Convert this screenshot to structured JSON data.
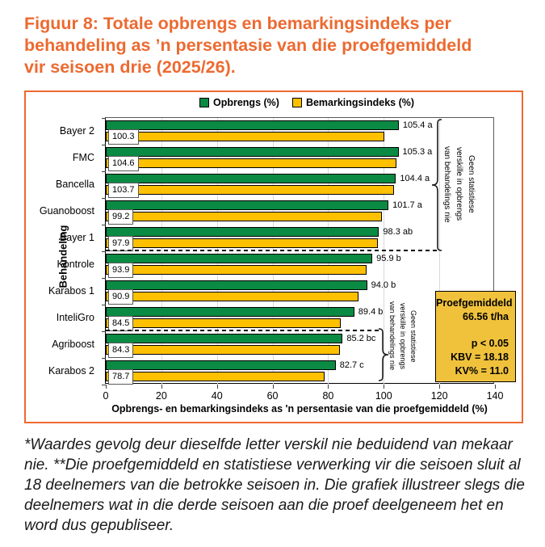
{
  "accent_color": "#EC6A31",
  "title_lines": [
    "Figuur 8: Totale opbrengs en bemarkingsindeks per",
    "behandeling as ’n persentasie van die proefgemiddeld",
    "vir seisoen drie (2025/26)."
  ],
  "chart_data": {
    "type": "bar",
    "orientation": "horizontal",
    "xlabel": "Opbrengs- en bemarkingsindeks as 'n persentasie van die proefgemiddeld (%)",
    "ylabel": "Behandeling",
    "xlim": [
      0,
      140
    ],
    "xticks": [
      0,
      20,
      40,
      60,
      80,
      100,
      120,
      140
    ],
    "grid": "vertical",
    "legend_position": "top-center",
    "categories": [
      "Bayer 2",
      "FMC",
      "Bancella",
      "Guanoboost",
      "Bayer 1",
      "Kontrole",
      "Karabos 1",
      "InteliGro",
      "Agriboost",
      "Karabos 2"
    ],
    "series": [
      {
        "name": "Opbrengs (%)",
        "color": "#0B8A43",
        "values": [
          105.4,
          105.3,
          104.4,
          101.7,
          98.3,
          95.9,
          94.0,
          89.4,
          85.2,
          82.7
        ],
        "bar_labels": [
          "105.4 a",
          "105.3 a",
          "104.4 a",
          "101.7 a",
          "98.3 ab",
          "95.9 b",
          "94.0 b",
          "89.4 b",
          "85.2 bc",
          "82.7 c"
        ]
      },
      {
        "name": "Bemarkingsindeks (%)",
        "color": "#FFC000",
        "values": [
          100.3,
          104.6,
          103.7,
          99.2,
          97.9,
          93.9,
          90.9,
          84.5,
          84.3,
          78.7
        ],
        "bar_labels": [
          "100.3",
          "104.6",
          "103.7",
          "99.2",
          "97.9",
          "93.9",
          "90.9",
          "84.5",
          "84.3",
          "78.7"
        ]
      }
    ],
    "group_separators_after_category_index": [
      4,
      7
    ],
    "group_annotations": [
      {
        "rows_spanned": [
          0,
          4
        ],
        "text_lines": [
          "Geen statistiese",
          "verskille in opbrengs",
          "van behandelings nie"
        ]
      },
      {
        "rows_spanned": [
          8,
          9
        ],
        "text_lines": [
          "Geen statistiese",
          "verskille in opbrengs",
          "van behandelings nie"
        ]
      }
    ],
    "stats_box": {
      "fill": "#F0C23C",
      "title": "Proefgemiddeld",
      "value": "66.56 t/ha",
      "lines": [
        "p < 0.05",
        "KBV = 18.18",
        "KV% = 11.0"
      ]
    }
  },
  "footnote": "*Waardes gevolg deur dieselfde letter verskil nie beduidend van mekaar nie. **Die proefgemiddeld en statistiese verwerking vir die seisoen sluit al 18 deelnemers van die betrokke seisoen in. Die grafiek illustreer slegs die deelnemers wat in die derde seisoen aan die proef deelgeneem het en word dus gepubliseer."
}
